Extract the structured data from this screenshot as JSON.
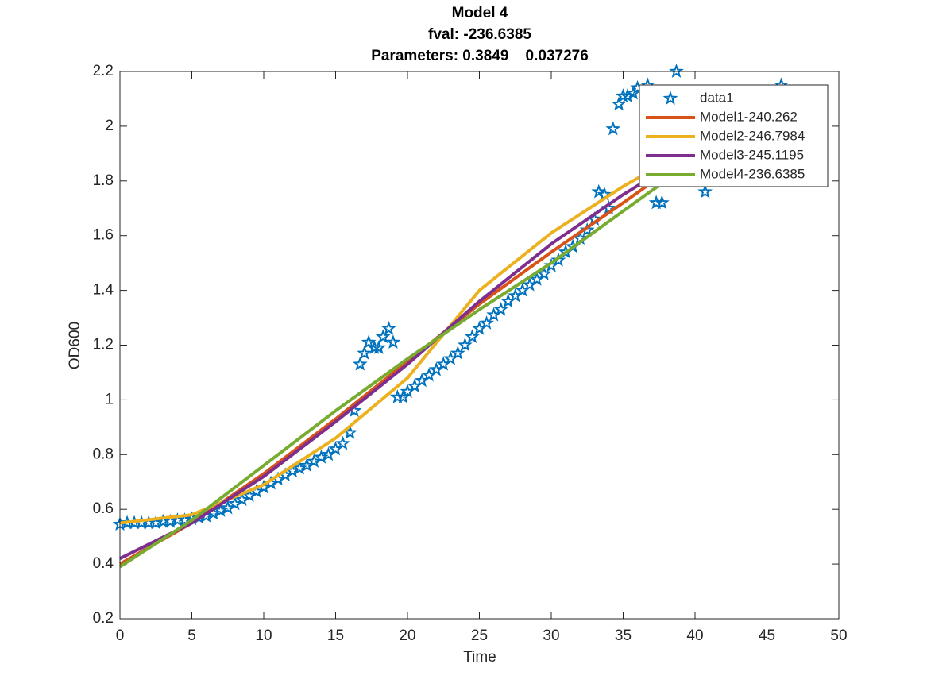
{
  "chart_data": {
    "type": "line",
    "title": [
      "Model 4",
      "fval: -236.6385",
      "Parameters: 0.3849    0.037276"
    ],
    "x_label": "Time",
    "y_label": "OD600",
    "xlim": [
      0,
      50
    ],
    "xticks": [
      0,
      5,
      10,
      15,
      20,
      25,
      30,
      35,
      40,
      45,
      50
    ],
    "ylim": [
      0.2,
      2.2
    ],
    "yticks": [
      0.2,
      0.4,
      0.6,
      0.8,
      1,
      1.2,
      1.4,
      1.6,
      1.8,
      2,
      2.2
    ],
    "grid": false,
    "legend": "northeast",
    "series": [
      {
        "name": "data1",
        "mode": "markers",
        "marker": "star",
        "color": "#0072BD",
        "x": [
          0,
          0.5,
          1,
          1.5,
          2,
          2.5,
          3,
          3.5,
          4,
          4.5,
          5,
          5.5,
          6,
          6.5,
          7,
          7.5,
          8,
          8.5,
          9,
          9.5,
          10,
          10.5,
          11,
          11.5,
          12,
          12.5,
          13,
          13.5,
          14,
          14.5,
          15,
          15.5,
          16,
          16.3,
          16.7,
          17,
          17.3,
          17.7,
          18,
          18.3,
          18.7,
          19,
          19.3,
          19.7,
          20,
          20.5,
          21,
          21.5,
          22,
          22.5,
          23,
          23.5,
          24,
          24.5,
          25,
          25.5,
          26,
          26.5,
          27,
          27.5,
          28,
          28.5,
          29,
          29.5,
          30,
          30.5,
          31,
          31.5,
          32,
          32.5,
          33,
          33.3,
          33.7,
          34,
          34.3,
          34.7,
          35,
          35.3,
          35.7,
          36,
          36.7,
          37.3,
          37.7,
          38.7,
          40.7,
          46
        ],
        "values": [
          0.545,
          0.55,
          0.55,
          0.55,
          0.55,
          0.55,
          0.555,
          0.555,
          0.56,
          0.56,
          0.565,
          0.57,
          0.575,
          0.585,
          0.595,
          0.605,
          0.62,
          0.635,
          0.65,
          0.665,
          0.68,
          0.695,
          0.71,
          0.725,
          0.74,
          0.75,
          0.76,
          0.775,
          0.79,
          0.8,
          0.82,
          0.84,
          0.88,
          0.96,
          1.13,
          1.17,
          1.21,
          1.19,
          1.19,
          1.23,
          1.26,
          1.21,
          1.01,
          1.01,
          1.03,
          1.05,
          1.07,
          1.09,
          1.11,
          1.13,
          1.15,
          1.17,
          1.2,
          1.23,
          1.26,
          1.28,
          1.31,
          1.33,
          1.36,
          1.38,
          1.4,
          1.42,
          1.44,
          1.46,
          1.49,
          1.51,
          1.54,
          1.56,
          1.59,
          1.62,
          1.66,
          1.76,
          1.75,
          1.7,
          1.99,
          2.08,
          2.11,
          2.11,
          2.12,
          2.14,
          2.15,
          1.72,
          1.72,
          2.2,
          1.76,
          2.15
        ]
      },
      {
        "name": "Model1-240.262",
        "mode": "line",
        "color": "#D95319",
        "x": [
          0,
          5,
          10,
          15,
          20,
          25,
          30,
          35,
          39
        ],
        "values": [
          0.4,
          0.55,
          0.73,
          0.93,
          1.14,
          1.35,
          1.54,
          1.72,
          1.87
        ]
      },
      {
        "name": "Model2-246.7984",
        "mode": "line",
        "color": "#EDB120",
        "x": [
          0,
          5,
          10,
          15,
          20,
          25,
          30,
          35,
          39
        ],
        "values": [
          0.55,
          0.58,
          0.69,
          0.86,
          1.08,
          1.4,
          1.61,
          1.78,
          1.9
        ]
      },
      {
        "name": "Model3-245.1195",
        "mode": "line",
        "color": "#7E2F8E",
        "x": [
          0,
          5,
          10,
          15,
          20,
          25,
          30,
          35,
          39
        ],
        "values": [
          0.42,
          0.55,
          0.72,
          0.92,
          1.13,
          1.36,
          1.57,
          1.75,
          1.88
        ]
      },
      {
        "name": "Model4-236.6385",
        "mode": "line",
        "color": "#77AC30",
        "x": [
          0,
          5,
          10,
          15,
          20,
          25,
          30,
          35,
          39
        ],
        "values": [
          0.39,
          0.56,
          0.76,
          0.96,
          1.15,
          1.33,
          1.5,
          1.69,
          1.84
        ]
      }
    ]
  }
}
